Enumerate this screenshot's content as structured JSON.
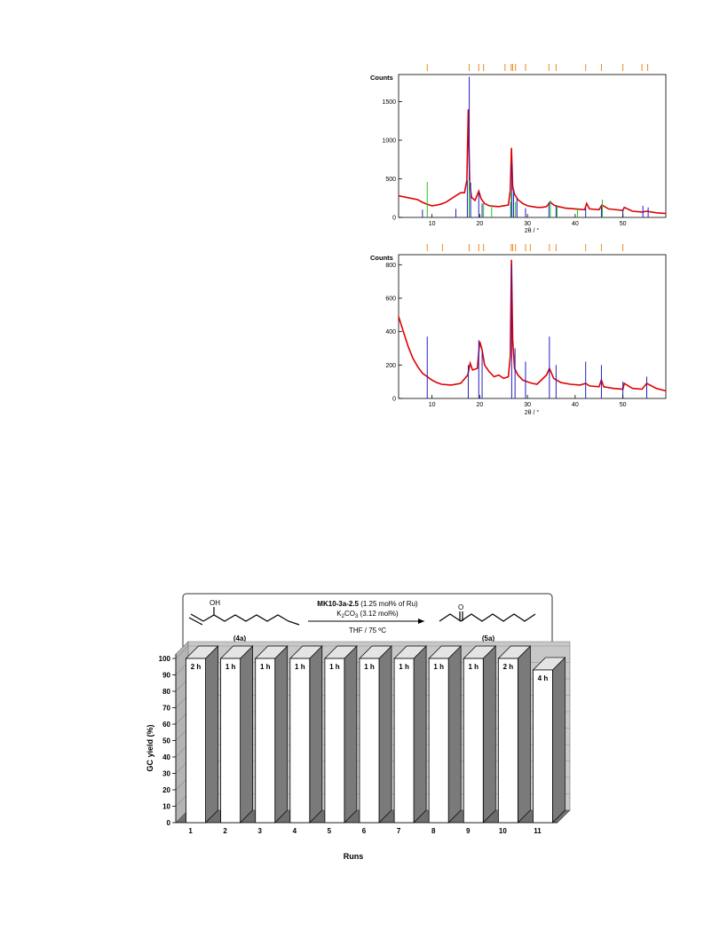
{
  "chart_data": [
    {
      "type": "line",
      "ylabel": "Counts",
      "xlabel": "2θ / °",
      "xlim": [
        3,
        59
      ],
      "ylim": [
        0,
        1850
      ],
      "xticks": [
        10,
        20,
        30,
        40,
        50
      ],
      "yticks": [
        0,
        500,
        1000,
        1500
      ],
      "reference_markers": [
        9,
        17.8,
        19.8,
        20.8,
        25.3,
        26.6,
        26.9,
        27.5,
        29.6,
        34.5,
        36,
        42.2,
        45.5,
        50,
        54,
        55.2
      ],
      "series": [
        {
          "color": "#e00000",
          "x": [
            3,
            5,
            7,
            8,
            9,
            10,
            11,
            12,
            13,
            14,
            15,
            16,
            16.8,
            17.3,
            17.6,
            17.9,
            18.3,
            19,
            19.8,
            20.3,
            21,
            22,
            23,
            24,
            25,
            26,
            26.4,
            26.65,
            26.9,
            27.3,
            28,
            29,
            30,
            31,
            32,
            33,
            34,
            34.8,
            35.5,
            36.5,
            38,
            40,
            42,
            42.4,
            43,
            45,
            45.6,
            47,
            50,
            50.3,
            52,
            54,
            55,
            57,
            59
          ],
          "y": [
            280,
            255,
            230,
            195,
            170,
            150,
            160,
            175,
            200,
            240,
            280,
            320,
            320,
            480,
            1400,
            430,
            260,
            220,
            340,
            240,
            180,
            150,
            145,
            140,
            150,
            160,
            350,
            900,
            400,
            300,
            230,
            180,
            150,
            140,
            130,
            130,
            140,
            200,
            160,
            140,
            120,
            110,
            100,
            180,
            110,
            100,
            160,
            110,
            90,
            130,
            80,
            70,
            80,
            60,
            50
          ]
        },
        {
          "color": "#2020c0",
          "x": [
            8,
            15,
            17.4,
            17.8,
            18.1,
            19.8,
            20.5,
            26.5,
            26.75,
            27.1,
            27.8,
            29.6,
            34.5,
            36,
            42.2,
            45.5,
            50,
            54.2,
            55.3
          ],
          "y": [
            100,
            110,
            480,
            1820,
            450,
            320,
            180,
            200,
            700,
            350,
            250,
            120,
            200,
            150,
            120,
            150,
            100,
            150,
            130
          ]
        },
        {
          "color": "#20c020",
          "x": [
            9,
            17.8,
            20.8,
            22.5,
            26.6,
            27.5,
            34.8,
            36.2,
            40.5,
            45.7
          ],
          "y": [
            460,
            480,
            180,
            150,
            320,
            200,
            220,
            150,
            120,
            230
          ]
        }
      ]
    },
    {
      "type": "line",
      "ylabel": "Counts",
      "xlabel": "2θ / °",
      "xlim": [
        3,
        59
      ],
      "ylim": [
        0,
        860
      ],
      "xticks": [
        10,
        20,
        30,
        40,
        50
      ],
      "yticks": [
        0,
        200,
        400,
        600,
        800
      ],
      "reference_markers": [
        9,
        12.2,
        17.8,
        19.8,
        20.8,
        26.6,
        26.9,
        27.5,
        29.6,
        30.6,
        34.6,
        36,
        42.2,
        45.5,
        50
      ],
      "series": [
        {
          "color": "#e00000",
          "x": [
            3,
            4,
            5,
            6,
            7,
            8,
            9,
            10,
            11,
            12,
            14,
            16,
            17.5,
            18,
            18.5,
            19.5,
            20,
            20.5,
            21,
            22,
            23,
            24,
            25,
            26,
            26.4,
            26.65,
            26.9,
            27.3,
            28,
            29,
            30,
            31,
            32,
            34,
            34.6,
            35.5,
            37,
            39,
            41,
            42.2,
            43,
            45,
            45.5,
            46,
            48,
            50,
            50.3,
            52,
            54,
            55,
            57,
            59
          ],
          "y": [
            490,
            400,
            310,
            240,
            190,
            150,
            130,
            110,
            95,
            85,
            80,
            90,
            140,
            210,
            170,
            180,
            340,
            290,
            200,
            160,
            130,
            140,
            120,
            130,
            250,
            830,
            350,
            180,
            140,
            110,
            100,
            90,
            85,
            140,
            180,
            120,
            95,
            85,
            80,
            90,
            75,
            70,
            110,
            70,
            60,
            55,
            90,
            60,
            55,
            90,
            60,
            45
          ]
        },
        {
          "color": "#2020c0",
          "x": [
            9,
            17.6,
            19.8,
            20.5,
            26.7,
            27.4,
            29.6,
            34.6,
            36,
            42.2,
            45.5,
            50,
            55
          ],
          "y": [
            370,
            200,
            350,
            280,
            800,
            300,
            220,
            370,
            200,
            220,
            200,
            100,
            130
          ]
        }
      ]
    },
    {
      "type": "bar",
      "title": "",
      "xlabel": "Runs",
      "ylabel": "GC yield (%)",
      "ylim": [
        0,
        100
      ],
      "yticks": [
        0,
        10,
        20,
        30,
        40,
        50,
        60,
        70,
        80,
        90,
        100
      ],
      "categories": [
        "1",
        "2",
        "3",
        "4",
        "5",
        "6",
        "7",
        "8",
        "9",
        "10",
        "11"
      ],
      "values": [
        100,
        100,
        100,
        100,
        100,
        100,
        100,
        100,
        100,
        100,
        93
      ],
      "bar_labels": [
        "2 h",
        "1 h",
        "1 h",
        "1 h",
        "1 h",
        "1 h",
        "1 h",
        "1 h",
        "1 h",
        "2 h",
        "4 h"
      ]
    }
  ],
  "scheme": {
    "reagent_bold": "MK10-3a-2.5",
    "reagent_rest": " (1.25 mol% of Ru)",
    "base_main": "K",
    "base_sub1": "2",
    "base_mid": "CO",
    "base_sub2": "3",
    "base_rest": " (3.12 mol%)",
    "conditions": "THF / 75 ºC",
    "substrate_label": "(4a)",
    "product_label": "(5a)",
    "oh_label": "OH",
    "o_label": "O"
  }
}
